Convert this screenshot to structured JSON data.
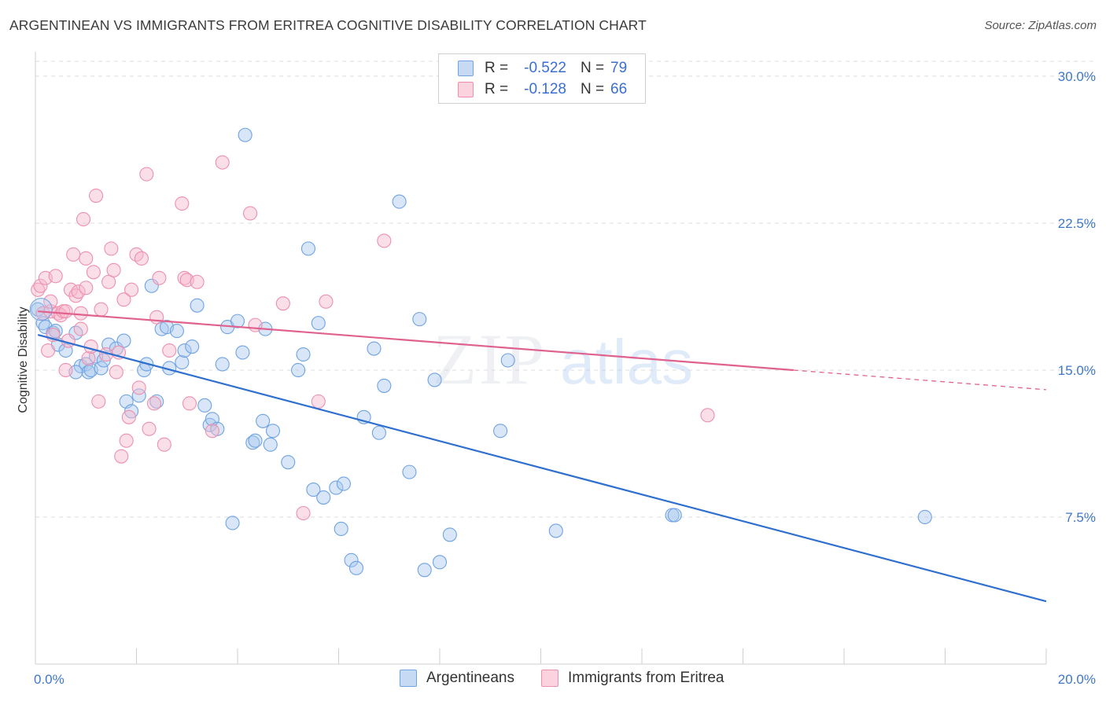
{
  "header": {
    "title": "ARGENTINEAN VS IMMIGRANTS FROM ERITREA COGNITIVE DISABILITY CORRELATION CHART",
    "source": "Source: ZipAtlas.com"
  },
  "legend": {
    "r_label": "R =",
    "n_label": "N =",
    "rows": [
      {
        "r": "-0.522",
        "n": "79",
        "color": "#a9c7ee"
      },
      {
        "r": "-0.128",
        "n": "66",
        "color": "#f6b8cb"
      }
    ]
  },
  "bottom_legend": {
    "items": [
      {
        "label": "Argentineans",
        "color": "#a9c7ee"
      },
      {
        "label": "Immigrants from Eritrea",
        "color": "#f6b8cb"
      }
    ]
  },
  "watermark": {
    "zip": "ZIP",
    "atlas": "atlas"
  },
  "chart_data": {
    "type": "scatter",
    "ylabel": "Cognitive Disability",
    "xlim": [
      0,
      20
    ],
    "ylim": [
      0,
      31
    ],
    "x_tick_labels": [
      "0.0%",
      "20.0%"
    ],
    "y_ticks": [
      7.5,
      15.0,
      22.5,
      30.0
    ],
    "y_tick_labels": [
      "7.5%",
      "15.0%",
      "22.5%",
      "30.0%"
    ],
    "grid": true,
    "series": [
      {
        "name": "Argentineans",
        "color": "#6fa3e3",
        "fill": "#a9c7ee",
        "line_color": "#2f6fcf",
        "trend": {
          "x0": 0.05,
          "y0": 16.8,
          "x1": 20.0,
          "y1": 3.2
        },
        "points": [
          [
            0.05,
            18.1
          ],
          [
            0.15,
            17.4
          ],
          [
            0.2,
            17.2
          ],
          [
            0.35,
            16.9
          ],
          [
            0.45,
            16.3
          ],
          [
            0.6,
            16.0
          ],
          [
            0.8,
            16.9
          ],
          [
            0.9,
            15.2
          ],
          [
            1.0,
            15.3
          ],
          [
            1.05,
            14.9
          ],
          [
            1.1,
            15.0
          ],
          [
            1.3,
            15.1
          ],
          [
            1.45,
            16.3
          ],
          [
            1.6,
            16.1
          ],
          [
            1.75,
            16.5
          ],
          [
            1.8,
            13.4
          ],
          [
            1.9,
            12.9
          ],
          [
            2.05,
            13.7
          ],
          [
            2.15,
            15.0
          ],
          [
            2.2,
            15.3
          ],
          [
            2.3,
            19.3
          ],
          [
            2.4,
            13.4
          ],
          [
            2.5,
            17.1
          ],
          [
            2.6,
            17.2
          ],
          [
            2.65,
            15.1
          ],
          [
            2.8,
            17.0
          ],
          [
            2.9,
            15.4
          ],
          [
            2.95,
            16.0
          ],
          [
            3.1,
            16.2
          ],
          [
            3.2,
            18.3
          ],
          [
            3.35,
            13.2
          ],
          [
            3.45,
            12.2
          ],
          [
            3.5,
            12.5
          ],
          [
            3.7,
            15.3
          ],
          [
            3.8,
            17.2
          ],
          [
            3.9,
            7.2
          ],
          [
            4.0,
            17.5
          ],
          [
            4.1,
            15.9
          ],
          [
            4.15,
            27.0
          ],
          [
            4.3,
            11.3
          ],
          [
            4.35,
            11.4
          ],
          [
            4.5,
            12.4
          ],
          [
            4.55,
            17.1
          ],
          [
            4.65,
            11.2
          ],
          [
            4.7,
            11.9
          ],
          [
            5.0,
            10.3
          ],
          [
            5.2,
            15.0
          ],
          [
            5.3,
            15.8
          ],
          [
            5.4,
            21.2
          ],
          [
            5.5,
            8.9
          ],
          [
            5.6,
            17.4
          ],
          [
            5.7,
            8.5
          ],
          [
            5.95,
            9.0
          ],
          [
            6.05,
            6.9
          ],
          [
            6.1,
            9.2
          ],
          [
            6.25,
            5.3
          ],
          [
            6.35,
            4.9
          ],
          [
            6.5,
            12.6
          ],
          [
            6.7,
            16.1
          ],
          [
            6.8,
            11.8
          ],
          [
            6.9,
            14.2
          ],
          [
            7.2,
            23.6
          ],
          [
            7.4,
            9.8
          ],
          [
            7.6,
            17.6
          ],
          [
            7.7,
            4.8
          ],
          [
            7.9,
            14.5
          ],
          [
            8.0,
            5.2
          ],
          [
            8.2,
            6.6
          ],
          [
            9.2,
            11.9
          ],
          [
            9.35,
            15.5
          ],
          [
            10.3,
            6.8
          ],
          [
            12.6,
            7.6
          ],
          [
            12.65,
            7.6
          ],
          [
            17.6,
            7.5
          ],
          [
            0.4,
            17.0
          ],
          [
            1.2,
            15.7
          ],
          [
            0.8,
            14.9
          ],
          [
            1.35,
            15.5
          ],
          [
            3.6,
            12.0
          ]
        ]
      },
      {
        "name": "Immigrants from Eritrea",
        "color": "#ee8fae",
        "fill": "#f6b8cb",
        "line_color": "#e0618e",
        "trend": {
          "x0": 0.05,
          "y0": 18.0,
          "x1": 15.0,
          "y1": 15.0
        },
        "trend_dash": {
          "x0": 15.0,
          "y0": 15.0,
          "x1": 20.0,
          "y1": 14.0
        },
        "points": [
          [
            0.05,
            19.1
          ],
          [
            0.1,
            19.3
          ],
          [
            0.15,
            17.9
          ],
          [
            0.2,
            19.7
          ],
          [
            0.25,
            16.0
          ],
          [
            0.3,
            18.0
          ],
          [
            0.35,
            16.8
          ],
          [
            0.4,
            19.8
          ],
          [
            0.45,
            17.9
          ],
          [
            0.5,
            17.8
          ],
          [
            0.55,
            18.0
          ],
          [
            0.6,
            18.0
          ],
          [
            0.65,
            16.5
          ],
          [
            0.7,
            19.1
          ],
          [
            0.75,
            20.9
          ],
          [
            0.8,
            18.8
          ],
          [
            0.85,
            19.0
          ],
          [
            0.9,
            17.1
          ],
          [
            0.95,
            22.7
          ],
          [
            1.0,
            20.7
          ],
          [
            1.05,
            15.6
          ],
          [
            1.1,
            16.2
          ],
          [
            1.15,
            20.0
          ],
          [
            1.2,
            23.9
          ],
          [
            1.25,
            13.4
          ],
          [
            1.3,
            18.1
          ],
          [
            1.4,
            15.8
          ],
          [
            1.45,
            19.5
          ],
          [
            1.5,
            21.2
          ],
          [
            1.55,
            20.1
          ],
          [
            1.6,
            14.9
          ],
          [
            1.65,
            15.9
          ],
          [
            1.7,
            10.6
          ],
          [
            1.8,
            11.4
          ],
          [
            1.85,
            12.6
          ],
          [
            1.9,
            19.1
          ],
          [
            2.0,
            20.9
          ],
          [
            2.05,
            14.1
          ],
          [
            2.1,
            20.7
          ],
          [
            2.2,
            25.0
          ],
          [
            2.25,
            12.0
          ],
          [
            2.35,
            13.3
          ],
          [
            2.4,
            17.7
          ],
          [
            2.55,
            11.2
          ],
          [
            2.65,
            16.0
          ],
          [
            2.9,
            23.5
          ],
          [
            2.95,
            19.7
          ],
          [
            3.0,
            19.6
          ],
          [
            3.05,
            13.3
          ],
          [
            3.2,
            19.5
          ],
          [
            3.5,
            11.9
          ],
          [
            3.7,
            25.6
          ],
          [
            4.25,
            23.0
          ],
          [
            4.35,
            17.3
          ],
          [
            4.9,
            18.4
          ],
          [
            5.3,
            7.7
          ],
          [
            5.6,
            13.4
          ],
          [
            5.75,
            18.5
          ],
          [
            6.9,
            21.6
          ],
          [
            13.3,
            12.7
          ],
          [
            0.6,
            15.0
          ],
          [
            1.0,
            19.2
          ],
          [
            0.3,
            18.5
          ],
          [
            0.9,
            17.9
          ],
          [
            1.75,
            18.6
          ],
          [
            2.45,
            19.7
          ]
        ]
      }
    ]
  }
}
